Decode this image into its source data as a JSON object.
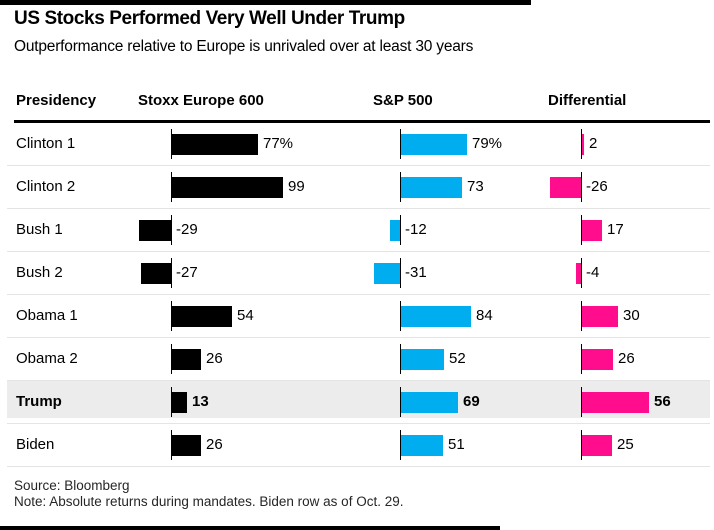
{
  "header": {
    "title": "US Stocks Performed Very Well Under Trump",
    "subtitle": "Outperformance relative to Europe is unrivaled over at least 30 years"
  },
  "table": {
    "columns": [
      "Presidency",
      "Stoxx Europe 600",
      "S&P 500",
      "Differential"
    ],
    "rows": [
      {
        "label": "Clinton 1",
        "highlight": false,
        "stoxx": {
          "value": 77,
          "display": "77%"
        },
        "sp500": {
          "value": 79,
          "display": "79%"
        },
        "diff": {
          "value": 2,
          "display": "2"
        }
      },
      {
        "label": "Clinton 2",
        "highlight": false,
        "stoxx": {
          "value": 99,
          "display": "99"
        },
        "sp500": {
          "value": 73,
          "display": "73"
        },
        "diff": {
          "value": -26,
          "display": "-26"
        }
      },
      {
        "label": "Bush 1",
        "highlight": false,
        "stoxx": {
          "value": -29,
          "display": "-29"
        },
        "sp500": {
          "value": -12,
          "display": "-12"
        },
        "diff": {
          "value": 17,
          "display": "17"
        }
      },
      {
        "label": "Bush 2",
        "highlight": false,
        "stoxx": {
          "value": -27,
          "display": "-27"
        },
        "sp500": {
          "value": -31,
          "display": "-31"
        },
        "diff": {
          "value": -4,
          "display": "-4"
        }
      },
      {
        "label": "Obama 1",
        "highlight": false,
        "stoxx": {
          "value": 54,
          "display": "54"
        },
        "sp500": {
          "value": 84,
          "display": "84"
        },
        "diff": {
          "value": 30,
          "display": "30"
        }
      },
      {
        "label": "Obama 2",
        "highlight": false,
        "stoxx": {
          "value": 26,
          "display": "26"
        },
        "sp500": {
          "value": 52,
          "display": "52"
        },
        "diff": {
          "value": 26,
          "display": "26"
        }
      },
      {
        "label": "Trump",
        "highlight": true,
        "stoxx": {
          "value": 13,
          "display": "13"
        },
        "sp500": {
          "value": 69,
          "display": "69"
        },
        "diff": {
          "value": 56,
          "display": "56"
        }
      },
      {
        "label": "Biden",
        "highlight": false,
        "stoxx": {
          "value": 26,
          "display": "26"
        },
        "sp500": {
          "value": 51,
          "display": "51"
        },
        "diff": {
          "value": 25,
          "display": "25"
        }
      }
    ]
  },
  "footer": {
    "source": "Source: Bloomberg",
    "note": "Note: Absolute returns during mandates. Biden row as of Oct. 29."
  },
  "colors": {
    "stoxx_bar": "#000000",
    "sp500_bar": "#00aeef",
    "differential_bar": "#ff0d8c",
    "highlight_row_bg": "#ececec",
    "separator": "#e4e4e4",
    "rule": "#000000"
  },
  "chart_data": {
    "type": "bar",
    "orientation": "horizontal",
    "title": "US Stocks Performed Very Well Under Trump",
    "subtitle": "Outperformance relative to Europe is unrivaled over at least 30 years",
    "unit": "%",
    "categories": [
      "Clinton 1",
      "Clinton 2",
      "Bush 1",
      "Bush 2",
      "Obama 1",
      "Obama 2",
      "Trump",
      "Biden"
    ],
    "series": [
      {
        "name": "Stoxx Europe 600",
        "color": "#000000",
        "values": [
          77,
          99,
          -29,
          -27,
          54,
          26,
          13,
          26
        ]
      },
      {
        "name": "S&P 500",
        "color": "#00aeef",
        "values": [
          79,
          73,
          -12,
          -31,
          84,
          52,
          69,
          51
        ]
      },
      {
        "name": "Differential",
        "color": "#ff0d8c",
        "values": [
          2,
          -26,
          17,
          -4,
          30,
          26,
          56,
          25
        ]
      }
    ],
    "highlighted_category": "Trump",
    "value_labels_shown": true,
    "first_row_suffix": "%",
    "grid": "row-separators-only",
    "legend_position": "column-headers",
    "source": "Bloomberg",
    "note": "Absolute returns during mandates. Biden row as of Oct. 29."
  }
}
